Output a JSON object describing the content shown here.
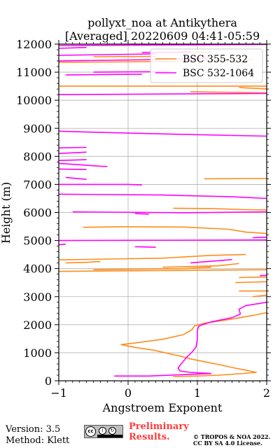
{
  "chart_data": {
    "type": "line",
    "title": "pollyxt_noa at Antikythera",
    "subtitle": "[Averaged] 20220609 04:41-05:59",
    "xlabel": "Angstroem Exponent",
    "ylabel": "Height (m)",
    "xlim": [
      -1,
      2
    ],
    "ylim": [
      0,
      12000
    ],
    "xticks": [
      -1,
      0,
      1,
      2
    ],
    "xtick_labels": [
      "−1",
      "0",
      "1",
      "2"
    ],
    "yticks": [
      0,
      1000,
      2000,
      3000,
      4000,
      5000,
      6000,
      7000,
      8000,
      9000,
      10000,
      11000,
      12000
    ],
    "ytick_labels": [
      "0",
      "1000",
      "2000",
      "3000",
      "4000",
      "5000",
      "6000",
      "7000",
      "8000",
      "9000",
      "10000",
      "11000",
      "12000"
    ],
    "grid": true,
    "legend_position": "upper-right",
    "series": [
      {
        "name": "BSC 355-532",
        "color": "#ff8c1a",
        "segments": [
          [
            [
              0.65,
              150
            ],
            [
              1.0,
              170
            ],
            [
              1.3,
              200
            ],
            [
              1.6,
              250
            ],
            [
              1.85,
              300
            ],
            [
              1.7,
              380
            ],
            [
              1.55,
              450
            ],
            [
              1.35,
              560
            ],
            [
              1.1,
              680
            ],
            [
              0.9,
              780
            ],
            [
              0.75,
              880
            ],
            [
              0.55,
              990
            ],
            [
              0.35,
              1100
            ],
            [
              0.1,
              1190
            ],
            [
              -0.1,
              1290
            ],
            [
              0.1,
              1350
            ],
            [
              0.5,
              1480
            ],
            [
              0.8,
              1650
            ],
            [
              0.92,
              1820
            ],
            [
              0.96,
              1960
            ],
            [
              1.1,
              2050
            ],
            [
              1.5,
              2200
            ],
            [
              1.8,
              2330
            ],
            [
              2.0,
              2430
            ]
          ],
          [
            [
              1.8,
              3000
            ],
            [
              2.0,
              3050
            ]
          ],
          [
            [
              1.6,
              3200
            ],
            [
              2.0,
              3200
            ]
          ],
          [
            [
              1.55,
              3500
            ],
            [
              2.0,
              3530
            ]
          ],
          [
            [
              1.6,
              3680
            ],
            [
              2.0,
              3700
            ]
          ],
          [
            [
              -1.0,
              3900
            ],
            [
              0.5,
              3930
            ],
            [
              2.0,
              3960
            ]
          ],
          [
            [
              -0.5,
              3960
            ],
            [
              0.8,
              4000
            ],
            [
              1.2,
              4050
            ]
          ],
          [
            [
              0.5,
              4050
            ],
            [
              1.3,
              4100
            ],
            [
              1.6,
              4180
            ]
          ],
          [
            [
              -0.9,
              4200
            ],
            [
              -0.6,
              4220
            ],
            [
              -0.4,
              4250
            ]
          ],
          [
            [
              -1.0,
              4310
            ],
            [
              0.5,
              4370
            ],
            [
              1.2,
              4470
            ],
            [
              1.7,
              4500
            ]
          ],
          [
            [
              -0.65,
              5470
            ],
            [
              -0.1,
              5490
            ],
            [
              0.8,
              5480
            ],
            [
              1.45,
              5400
            ],
            [
              1.7,
              5300
            ],
            [
              2.0,
              5250
            ]
          ],
          [
            [
              0.65,
              6150
            ],
            [
              1.2,
              6140
            ],
            [
              1.7,
              6100
            ],
            [
              2.0,
              6090
            ]
          ],
          [
            [
              1.1,
              7200
            ],
            [
              2.0,
              7210
            ]
          ],
          [
            [
              -1.0,
              10500
            ],
            [
              2.0,
              10500
            ]
          ],
          [
            [
              1.6,
              10450
            ],
            [
              2.0,
              10400
            ]
          ],
          [
            [
              0.9,
              10300
            ],
            [
              2.0,
              10260
            ]
          ],
          [
            [
              -1.0,
              11350
            ],
            [
              0.5,
              11380
            ],
            [
              1.8,
              11440
            ]
          ],
          [
            [
              -0.5,
              11550
            ],
            [
              0.4,
              11560
            ]
          ],
          [
            [
              0.4,
              11700
            ],
            [
              1.2,
              11710
            ]
          ]
        ]
      },
      {
        "name": "BSC 532-1064",
        "color": "#ff00ff",
        "segments": [
          [
            [
              -0.2,
              170
            ],
            [
              0.3,
              170
            ],
            [
              0.7,
              210
            ],
            [
              1.2,
              260
            ]
          ],
          [
            [
              1.2,
              260
            ],
            [
              0.9,
              300
            ],
            [
              0.75,
              350
            ],
            [
              0.72,
              450
            ],
            [
              0.75,
              560
            ],
            [
              0.8,
              700
            ],
            [
              0.85,
              850
            ],
            [
              0.92,
              1020
            ],
            [
              0.98,
              1200
            ],
            [
              1.0,
              1500
            ],
            [
              1.0,
              1800
            ],
            [
              1.02,
              1950
            ],
            [
              1.2,
              2100
            ],
            [
              1.5,
              2250
            ],
            [
              1.62,
              2380
            ],
            [
              1.6,
              2550
            ],
            [
              1.7,
              2680
            ],
            [
              2.0,
              2800
            ]
          ],
          [
            [
              1.9,
              3750
            ],
            [
              2.0,
              3760
            ]
          ],
          [
            [
              0.9,
              4200
            ],
            [
              1.3,
              4280
            ],
            [
              1.5,
              4320
            ]
          ],
          [
            [
              -1.0,
              4850
            ],
            [
              -0.9,
              4870
            ]
          ],
          [
            [
              0.1,
              4780
            ],
            [
              0.4,
              4760
            ]
          ],
          [
            [
              -1.0,
              5000
            ],
            [
              2.0,
              5020
            ]
          ],
          [
            [
              1.8,
              5100
            ],
            [
              2.0,
              5120
            ]
          ],
          [
            [
              -0.8,
              6020
            ],
            [
              0.8,
              5990
            ],
            [
              2.0,
              6020
            ]
          ],
          [
            [
              0.1,
              5960
            ],
            [
              0.3,
              5940
            ]
          ],
          [
            [
              -1.0,
              6650
            ],
            [
              0.5,
              6620
            ],
            [
              1.5,
              6560
            ],
            [
              2.0,
              6500
            ]
          ],
          [
            [
              -1.0,
              7000
            ],
            [
              0.0,
              7000
            ],
            [
              0.2,
              6980
            ]
          ],
          [
            [
              -0.9,
              7250
            ],
            [
              -0.7,
              7200
            ],
            [
              -0.6,
              7180
            ]
          ],
          [
            [
              -1.0,
              7550
            ],
            [
              -0.6,
              7530
            ]
          ],
          [
            [
              -1.0,
              7750
            ],
            [
              -0.4,
              7650
            ],
            [
              -0.3,
              7640
            ]
          ],
          [
            [
              -1.0,
              7850
            ],
            [
              -0.6,
              7880
            ]
          ],
          [
            [
              -1.0,
              8100
            ],
            [
              -0.6,
              8150
            ]
          ],
          [
            [
              -1.0,
              8300
            ],
            [
              -0.6,
              8320
            ]
          ],
          [
            [
              -1.0,
              8900
            ],
            [
              -0.8,
              8880
            ],
            [
              0.5,
              8800
            ],
            [
              2.0,
              8720
            ]
          ],
          [
            [
              -1.0,
              10200
            ],
            [
              2.0,
              10240
            ]
          ],
          [
            [
              -0.9,
              10900
            ],
            [
              0.2,
              10930
            ]
          ],
          [
            [
              -0.5,
              11000
            ],
            [
              0.6,
              11020
            ]
          ],
          [
            [
              -1.0,
              11400
            ],
            [
              0.5,
              11450
            ],
            [
              1.2,
              11500
            ]
          ],
          [
            [
              -1.0,
              11600
            ],
            [
              0.4,
              11650
            ]
          ],
          [
            [
              -1.0,
              11850
            ],
            [
              -0.6,
              11880
            ]
          ],
          [
            [
              -1.0,
              11950
            ],
            [
              1.5,
              11980
            ],
            [
              2.0,
              11990
            ]
          ],
          [
            [
              0.2,
              11700
            ],
            [
              0.9,
              11720
            ]
          ]
        ]
      }
    ]
  },
  "footer": {
    "version": "Version: 3.5",
    "method": "Method: Klett",
    "preliminary_line1": "Preliminary",
    "preliminary_line2": "Results.",
    "copyright_line1": "© TROPOS & NOA 2022.",
    "copyright_line2": "CC BY SA 4.0 License.",
    "license_badge": "CC BY SA"
  }
}
